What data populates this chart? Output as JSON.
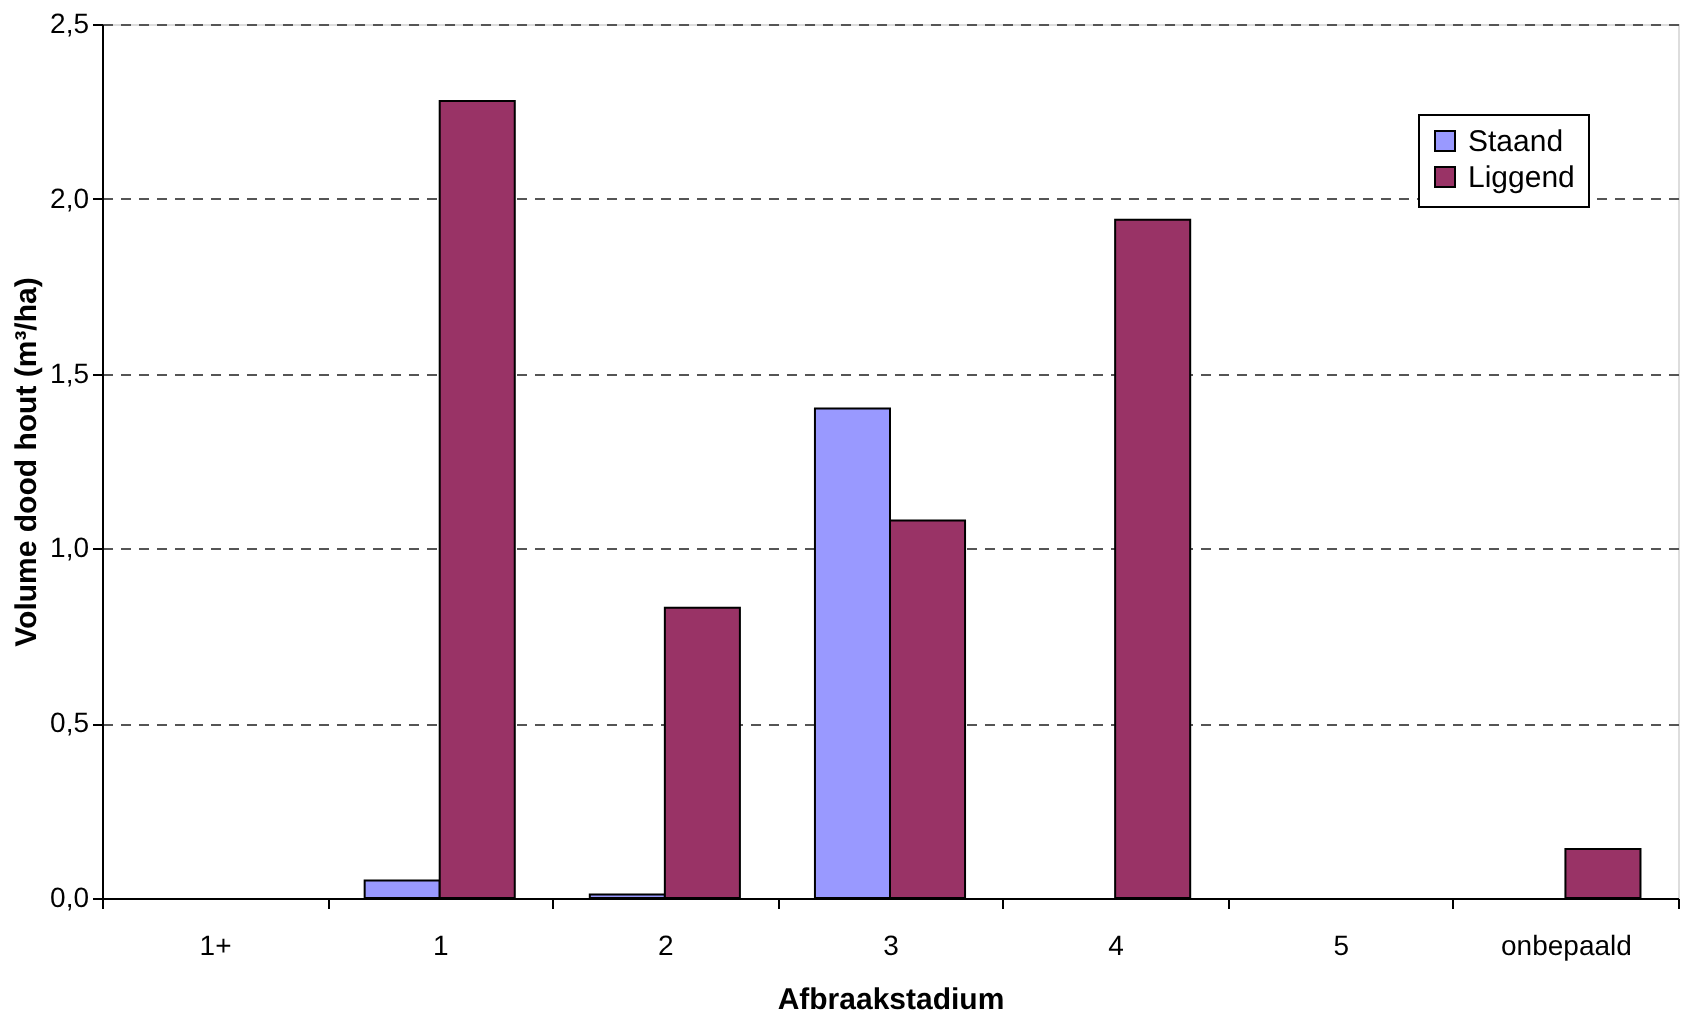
{
  "chart_data": {
    "type": "bar",
    "xlabel": "Afbraakstadium",
    "ylabel": "Volume dood hout (m³/ha)",
    "categories": [
      "1+",
      "1",
      "2",
      "3",
      "4",
      "5",
      "onbepaald"
    ],
    "series": [
      {
        "name": "Staand",
        "color": "#9999ff",
        "values": [
          null,
          0.05,
          0.01,
          1.4,
          null,
          null,
          null
        ]
      },
      {
        "name": "Liggend",
        "color": "#993366",
        "values": [
          null,
          2.28,
          0.83,
          1.08,
          1.94,
          null,
          0.14
        ]
      }
    ],
    "ylim": [
      0,
      2.5
    ],
    "yticks": [
      {
        "value": 0,
        "label": "0,0"
      },
      {
        "value": 0.5,
        "label": "0,5"
      },
      {
        "value": 1,
        "label": "1,0"
      },
      {
        "value": 1.5,
        "label": "1,5"
      },
      {
        "value": 2,
        "label": "2,0"
      },
      {
        "value": 2.5,
        "label": "2,5"
      }
    ],
    "grid": "y",
    "legend": "top right"
  }
}
